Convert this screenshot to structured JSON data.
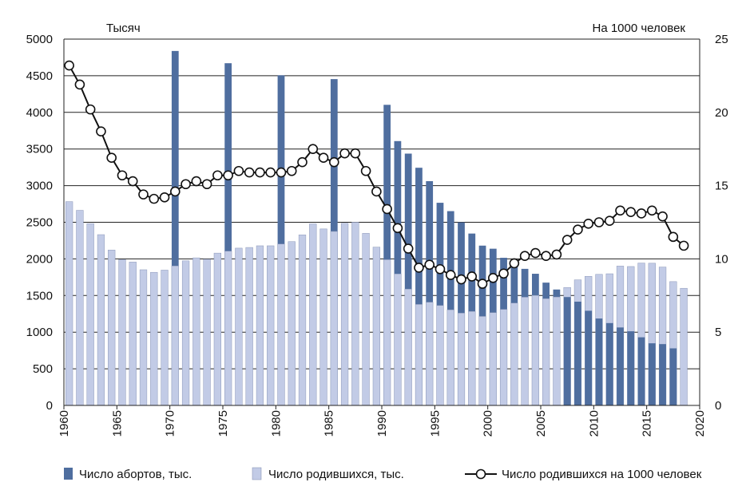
{
  "chart_data": {
    "type": "bar",
    "left_axis_label": "Тысяч",
    "right_axis_label": "На 1000 человек",
    "x_ticks": [
      1960,
      1965,
      1970,
      1975,
      1980,
      1985,
      1990,
      1995,
      2000,
      2005,
      2010,
      2015,
      2020
    ],
    "y_left_ticks": [
      0,
      500,
      1000,
      1500,
      2000,
      2500,
      3000,
      3500,
      4000,
      4500,
      5000
    ],
    "y_right_ticks": [
      0,
      5,
      10,
      15,
      20,
      25
    ],
    "ylim_left": [
      0,
      5000
    ],
    "ylim_right": [
      0,
      25
    ],
    "xlim": [
      1960,
      2020
    ],
    "grid": "horizontal",
    "colors": {
      "abortions": "#4f6e9f",
      "births": "#c2cbe6",
      "birth_rate_line": "#111111",
      "marker_fill": "#ffffff"
    },
    "series": [
      {
        "name": "Число абортов, тыс.",
        "kind": "bar",
        "axis": "left",
        "x": [
          1970,
          1975,
          1980,
          1985,
          1990,
          1991,
          1992,
          1993,
          1994,
          1995,
          1996,
          1997,
          1998,
          1999,
          2000,
          2001,
          2002,
          2003,
          2004,
          2005,
          2006,
          2007,
          2008,
          2009,
          2010,
          2011,
          2012,
          2013,
          2014,
          2015,
          2016,
          2017
        ],
        "values": [
          4838,
          4671,
          4506,
          4454,
          4103,
          3608,
          3437,
          3244,
          3061,
          2766,
          2652,
          2499,
          2346,
          2181,
          2139,
          2015,
          1944,
          1864,
          1797,
          1676,
          1582,
          1479,
          1416,
          1292,
          1186,
          1124,
          1064,
          1012,
          930,
          848,
          837,
          779
        ]
      },
      {
        "name": "Число родившихся, тыс.",
        "kind": "bar",
        "axis": "left",
        "x": [
          1960,
          1961,
          1962,
          1963,
          1964,
          1965,
          1966,
          1967,
          1968,
          1969,
          1970,
          1971,
          1972,
          1973,
          1974,
          1975,
          1976,
          1977,
          1978,
          1979,
          1980,
          1981,
          1982,
          1983,
          1984,
          1985,
          1986,
          1987,
          1988,
          1989,
          1990,
          1991,
          1992,
          1993,
          1994,
          1995,
          1996,
          1997,
          1998,
          1999,
          2000,
          2001,
          2002,
          2003,
          2004,
          2005,
          2006,
          2007,
          2008,
          2009,
          2010,
          2011,
          2012,
          2013,
          2014,
          2015,
          2016,
          2017,
          2018
        ],
        "values": [
          2782,
          2663,
          2482,
          2331,
          2121,
          1991,
          1957,
          1852,
          1817,
          1847,
          1904,
          1974,
          2014,
          1995,
          2079,
          2106,
          2147,
          2156,
          2179,
          2179,
          2203,
          2236,
          2328,
          2478,
          2409,
          2375,
          2486,
          2500,
          2349,
          2161,
          1989,
          1795,
          1588,
          1379,
          1409,
          1364,
          1305,
          1260,
          1283,
          1215,
          1267,
          1311,
          1397,
          1477,
          1502,
          1457,
          1480,
          1610,
          1714,
          1762,
          1789,
          1797,
          1902,
          1896,
          1943,
          1941,
          1889,
          1690,
          1599
        ]
      },
      {
        "name": "Число родившихся на 1000 человек",
        "kind": "line",
        "axis": "right",
        "x": [
          1960,
          1961,
          1962,
          1963,
          1964,
          1965,
          1966,
          1967,
          1968,
          1969,
          1970,
          1971,
          1972,
          1973,
          1974,
          1975,
          1976,
          1977,
          1978,
          1979,
          1980,
          1981,
          1982,
          1983,
          1984,
          1985,
          1986,
          1987,
          1988,
          1989,
          1990,
          1991,
          1992,
          1993,
          1994,
          1995,
          1996,
          1997,
          1998,
          1999,
          2000,
          2001,
          2002,
          2003,
          2004,
          2005,
          2006,
          2007,
          2008,
          2009,
          2010,
          2011,
          2012,
          2013,
          2014,
          2015,
          2016,
          2017,
          2018
        ],
        "values": [
          23.2,
          21.9,
          20.2,
          18.7,
          16.9,
          15.7,
          15.3,
          14.4,
          14.1,
          14.2,
          14.6,
          15.1,
          15.3,
          15.1,
          15.7,
          15.7,
          16.0,
          15.9,
          15.9,
          15.9,
          15.9,
          16.0,
          16.6,
          17.5,
          16.9,
          16.6,
          17.2,
          17.2,
          16.0,
          14.6,
          13.4,
          12.1,
          10.7,
          9.4,
          9.6,
          9.3,
          8.9,
          8.6,
          8.8,
          8.3,
          8.7,
          9.0,
          9.7,
          10.2,
          10.4,
          10.2,
          10.3,
          11.3,
          12.0,
          12.4,
          12.5,
          12.6,
          13.3,
          13.2,
          13.1,
          13.3,
          12.9,
          11.5,
          10.9
        ]
      }
    ]
  }
}
